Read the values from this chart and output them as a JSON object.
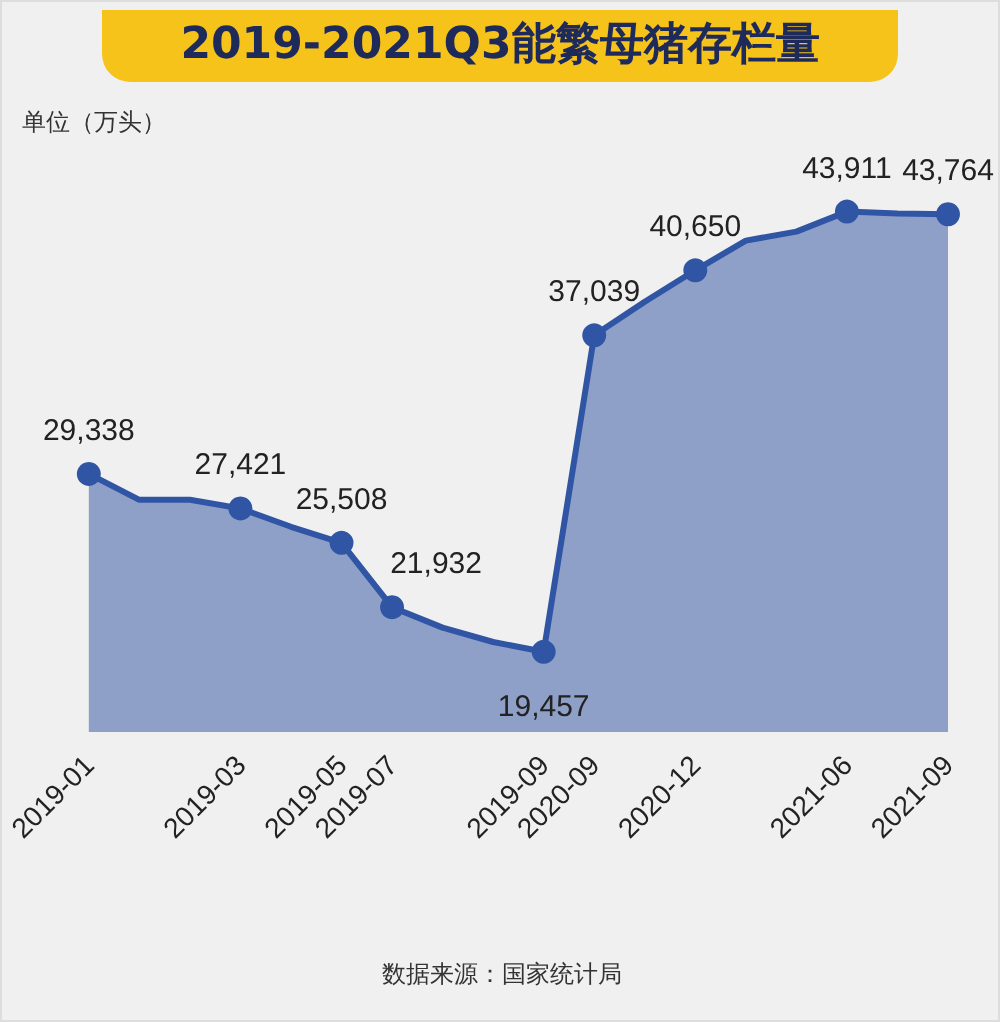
{
  "chart_data": {
    "type": "area",
    "title": "2019-2021Q3能繁母猪存栏量",
    "ylabel": "单位（万头）",
    "categories": [
      "2019-01",
      null,
      null,
      "2019-03",
      null,
      "2019-05",
      "2019-07",
      null,
      null,
      "2019-09",
      "2020-09",
      null,
      "2020-12",
      null,
      null,
      "2021-06",
      null,
      "2021-09"
    ],
    "series": [
      {
        "color": "#2f55a4",
        "values": [
          29338,
          27900,
          27900,
          27421,
          26400,
          25508,
          21932,
          20800,
          20000,
          19457,
          37039,
          38900,
          40650,
          42300,
          42800,
          43911,
          43800,
          43764
        ],
        "value_labels": [
          "29,338",
          null,
          null,
          "27,421",
          null,
          "25,508",
          "21,932",
          null,
          null,
          "19,457",
          "37,039",
          null,
          "40,650",
          null,
          null,
          "43,911",
          null,
          "43,764"
        ]
      }
    ],
    "marker": "circle",
    "grid": false,
    "annotations": [
      "数据来源：国家统计局"
    ]
  }
}
